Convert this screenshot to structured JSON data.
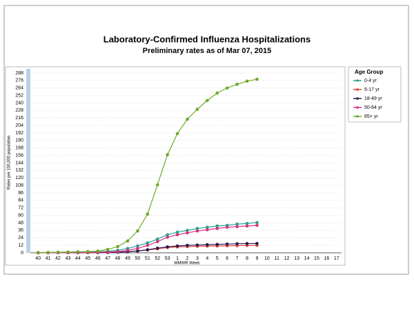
{
  "chart_data": {
    "type": "line",
    "title": "Laboratory-Confirmed Influenza Hospitalizations",
    "subtitle": "Preliminary rates as of Mar 07, 2015",
    "x_label": "MMWR Week",
    "y_label": "Rates per 100,000 population",
    "legend_title": "Age Group",
    "categories": [
      "40",
      "41",
      "42",
      "43",
      "44",
      "45",
      "46",
      "47",
      "48",
      "49",
      "50",
      "51",
      "52",
      "53",
      "1",
      "2",
      "3",
      "4",
      "5",
      "6",
      "7",
      "8",
      "9",
      "10",
      "11",
      "12",
      "13",
      "14",
      "15",
      "16",
      "17"
    ],
    "ylim": [
      0,
      288
    ],
    "yticks": [
      0,
      12,
      24,
      36,
      48,
      60,
      72,
      84,
      96,
      108,
      120,
      132,
      144,
      156,
      168,
      180,
      192,
      204,
      216,
      228,
      240,
      252,
      264,
      276,
      288
    ],
    "grid": true,
    "series": [
      {
        "name": "0-4 yr",
        "color": "#2e9e8f",
        "values": [
          0.2,
          0.3,
          0.5,
          0.6,
          0.8,
          1,
          1.5,
          2.5,
          4,
          7,
          11,
          16,
          22,
          29,
          33,
          36,
          39,
          41,
          43,
          44,
          46,
          47,
          48.5,
          null,
          null,
          null,
          null,
          null,
          null,
          null,
          null
        ]
      },
      {
        "name": "5-17 yr",
        "color": "#e0403a",
        "values": [
          0.1,
          0.1,
          0.2,
          0.2,
          0.3,
          0.3,
          0.4,
          0.5,
          0.9,
          1.6,
          2.8,
          4.5,
          6.5,
          8.5,
          9.5,
          10,
          10.5,
          10.8,
          11,
          11.3,
          11.5,
          11.8,
          12,
          null,
          null,
          null,
          null,
          null,
          null,
          null,
          null
        ]
      },
      {
        "name": "18-49 yr",
        "color": "#2c1a4f",
        "values": [
          0.1,
          0.1,
          0.2,
          0.2,
          0.3,
          0.3,
          0.4,
          0.6,
          1,
          1.8,
          3,
          5,
          7.5,
          9.5,
          11,
          12,
          12.5,
          13,
          13.5,
          14,
          14.5,
          14.8,
          15,
          null,
          null,
          null,
          null,
          null,
          null,
          null,
          null
        ]
      },
      {
        "name": "50-64 yr",
        "color": "#d63384",
        "values": [
          0.1,
          0.2,
          0.3,
          0.4,
          0.5,
          0.6,
          0.8,
          1.2,
          2,
          4,
          7,
          12,
          18,
          25,
          29,
          32,
          35,
          37,
          39,
          41,
          42,
          43,
          44,
          null,
          null,
          null,
          null,
          null,
          null,
          null,
          null
        ]
      },
      {
        "name": "65+ yr",
        "color": "#6aaa2a",
        "values": [
          0.5,
          0.7,
          1,
          1.3,
          1.6,
          2,
          2.8,
          5.5,
          10,
          19,
          35,
          62,
          109,
          157,
          191,
          214,
          230,
          244,
          256,
          264,
          270,
          275,
          278,
          null,
          null,
          null,
          null,
          null,
          null,
          null,
          null
        ]
      }
    ]
  }
}
